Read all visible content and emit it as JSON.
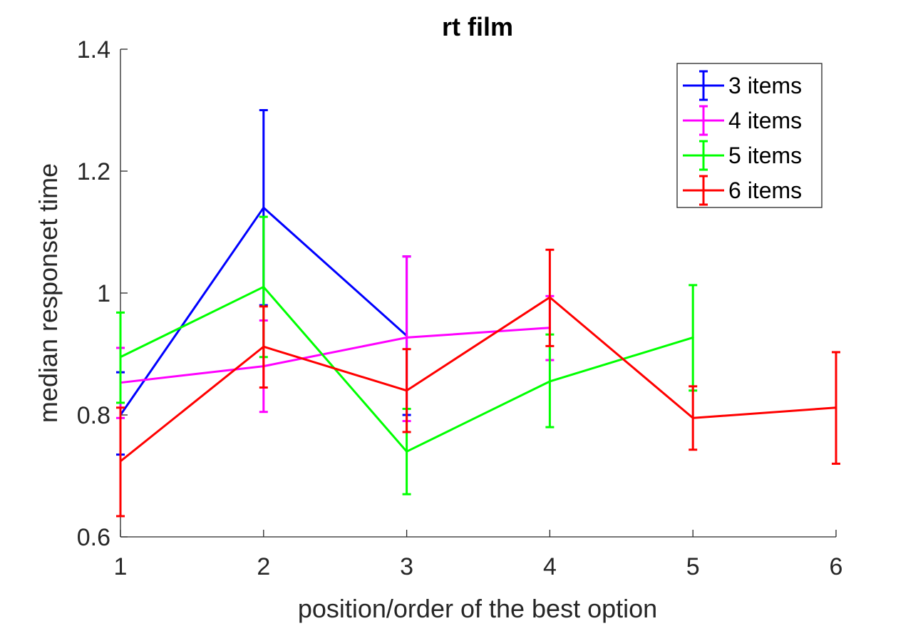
{
  "chart_data": {
    "type": "line",
    "title": "rt film",
    "xlabel": "position/order of the best option",
    "ylabel": "median responset time",
    "xlim": [
      1,
      6
    ],
    "ylim": [
      0.6,
      1.4
    ],
    "xticks": [
      "1",
      "2",
      "3",
      "4",
      "5",
      "6"
    ],
    "yticks": [
      "0.6",
      "0.8",
      "1",
      "1.2",
      "1.4"
    ],
    "legend_position": "top-right",
    "grid": false,
    "series": [
      {
        "name": "3 items",
        "color": "#0000ff",
        "x": [
          1,
          2,
          3
        ],
        "y": [
          0.8,
          1.14,
          0.93
        ],
        "err_low": [
          0.735,
          0.98,
          0.8
        ],
        "err_high": [
          0.87,
          1.3,
          1.06
        ]
      },
      {
        "name": "4 items",
        "color": "#ff00ff",
        "x": [
          1,
          2,
          3,
          4
        ],
        "y": [
          0.853,
          0.88,
          0.927,
          0.943
        ],
        "err_low": [
          0.795,
          0.805,
          0.79,
          0.89
        ],
        "err_high": [
          0.91,
          0.955,
          1.06,
          0.995
        ]
      },
      {
        "name": "5 items",
        "color": "#00ff00",
        "x": [
          1,
          2,
          3,
          4,
          5
        ],
        "y": [
          0.895,
          1.01,
          0.74,
          0.855,
          0.927
        ],
        "err_low": [
          0.82,
          0.895,
          0.67,
          0.78,
          0.84
        ],
        "err_high": [
          0.968,
          1.125,
          0.81,
          0.932,
          1.013
        ]
      },
      {
        "name": "6 items",
        "color": "#ff0000",
        "x": [
          1,
          2,
          3,
          4,
          5,
          6
        ],
        "y": [
          0.724,
          0.912,
          0.84,
          0.993,
          0.795,
          0.812
        ],
        "err_low": [
          0.634,
          0.845,
          0.772,
          0.913,
          0.743,
          0.72
        ],
        "err_high": [
          0.812,
          0.978,
          0.908,
          1.071,
          0.847,
          0.903
        ]
      }
    ]
  }
}
